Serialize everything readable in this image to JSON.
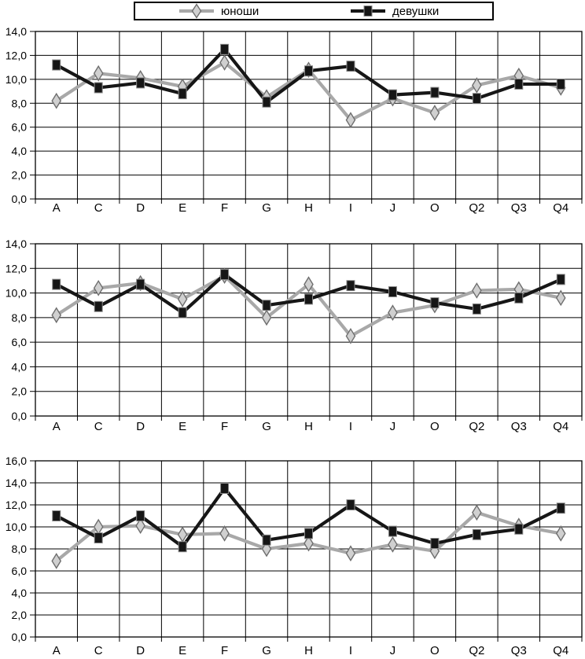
{
  "page": {
    "background": "#ffffff"
  },
  "legend": {
    "border_color": "#000000",
    "items": [
      {
        "label": "юноши",
        "series_key": "boys",
        "marker": "diamond"
      },
      {
        "label": "девушки",
        "series_key": "girls",
        "marker": "square"
      }
    ]
  },
  "colors": {
    "boys_line": "#a8a8a8",
    "boys_marker_fill": "#d0d0d0",
    "boys_marker_stroke": "#6e6e6e",
    "girls_line": "#161616",
    "girls_marker_fill": "#161616",
    "girls_marker_stroke": "#8a8a8a",
    "grid_line": "#000000",
    "text": "#000000"
  },
  "chart_data": [
    {
      "type": "line",
      "title": "",
      "categories": [
        "A",
        "C",
        "D",
        "E",
        "F",
        "G",
        "H",
        "I",
        "J",
        "O",
        "Q2",
        "Q3",
        "Q4"
      ],
      "series": [
        {
          "name": "юноши",
          "marker": "diamond",
          "values": [
            8.2,
            10.5,
            10.1,
            9.4,
            11.4,
            8.5,
            10.8,
            6.6,
            8.4,
            7.2,
            9.5,
            10.3,
            9.3
          ]
        },
        {
          "name": "девушки",
          "marker": "square",
          "values": [
            11.2,
            9.3,
            9.7,
            8.8,
            12.5,
            8.1,
            10.7,
            11.1,
            8.7,
            8.9,
            8.4,
            9.6,
            9.6
          ]
        }
      ],
      "ylim": [
        0,
        14
      ],
      "ytick_step": 2,
      "ytick_labels": [
        "0,0",
        "2,0",
        "4,0",
        "6,0",
        "8,0",
        "10,0",
        "12,0",
        "14,0"
      ],
      "grid": true,
      "legend_position": "top",
      "decimal_separator": ","
    },
    {
      "type": "line",
      "title": "",
      "categories": [
        "A",
        "C",
        "D",
        "E",
        "F",
        "G",
        "H",
        "I",
        "J",
        "O",
        "Q2",
        "Q3",
        "Q4"
      ],
      "series": [
        {
          "name": "юноши",
          "marker": "diamond",
          "values": [
            8.2,
            10.4,
            10.8,
            9.5,
            11.4,
            8.0,
            10.7,
            6.5,
            8.4,
            9.0,
            10.2,
            10.3,
            9.6
          ]
        },
        {
          "name": "девушки",
          "marker": "square",
          "values": [
            10.7,
            8.9,
            10.7,
            8.4,
            11.5,
            9.0,
            9.5,
            10.6,
            10.1,
            9.2,
            8.7,
            9.6,
            11.1
          ]
        }
      ],
      "ylim": [
        0,
        14
      ],
      "ytick_step": 2,
      "ytick_labels": [
        "0,0",
        "2,0",
        "4,0",
        "6,0",
        "8,0",
        "10,0",
        "12,0",
        "14,0"
      ],
      "grid": true,
      "legend_position": "top",
      "decimal_separator": ","
    },
    {
      "type": "line",
      "title": "",
      "categories": [
        "A",
        "C",
        "D",
        "E",
        "F",
        "G",
        "H",
        "I",
        "J",
        "O",
        "Q2",
        "Q3",
        "Q4"
      ],
      "series": [
        {
          "name": "юноши",
          "marker": "diamond",
          "values": [
            6.9,
            10.0,
            10.1,
            9.3,
            9.4,
            8.0,
            8.5,
            7.6,
            8.4,
            7.8,
            11.3,
            10.1,
            9.4
          ]
        },
        {
          "name": "девушки",
          "marker": "square",
          "values": [
            11.0,
            9.0,
            11.0,
            8.2,
            13.5,
            8.8,
            9.4,
            12.0,
            9.6,
            8.5,
            9.3,
            9.8,
            11.7
          ]
        }
      ],
      "ylim": [
        0,
        16
      ],
      "ytick_step": 2,
      "ytick_labels": [
        "0,0",
        "2,0",
        "4,0",
        "6,0",
        "8,0",
        "10,0",
        "12,0",
        "14,0",
        "16,0"
      ],
      "grid": true,
      "legend_position": "top",
      "decimal_separator": ","
    }
  ]
}
